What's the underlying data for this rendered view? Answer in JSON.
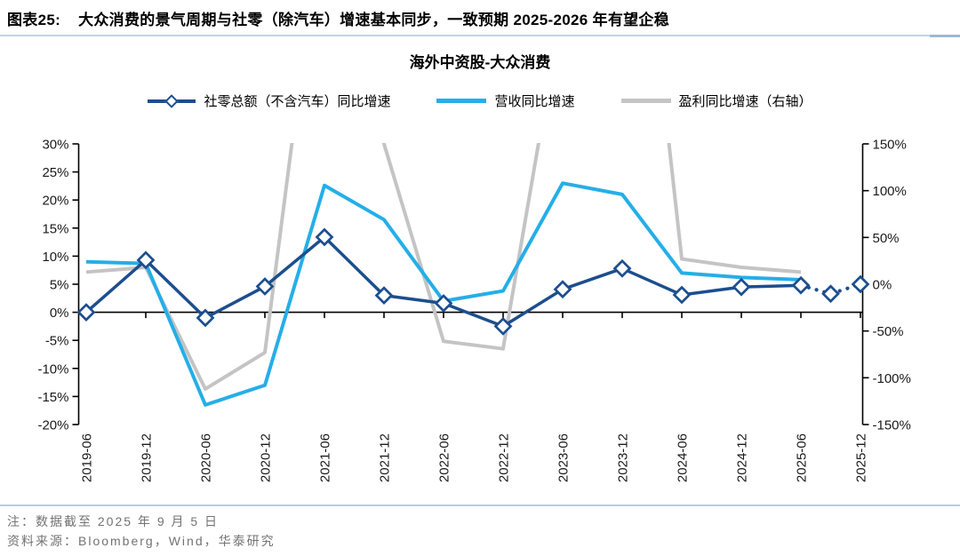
{
  "figure": {
    "label": "图表25:",
    "title": "大众消费的景气周期与社零（除汽车）增速基本同步，一致预期 2025-2026 年有望企稳"
  },
  "chart_title": "海外中资股-大众消费",
  "legend": [
    {
      "name": "社零总额（不含汽车）同比增速",
      "swatch": "navy-diamond-line"
    },
    {
      "name": "营收同比增速",
      "swatch": "cyan-line"
    },
    {
      "name": "盈利同比增速（右轴）",
      "swatch": "gray-line"
    }
  ],
  "notes": [
    "注：数据截至 2025 年 9 月 5 日",
    "资料来源：Bloomberg，Wind，华泰研究"
  ],
  "colors": {
    "navy": "#1c4e8e",
    "cyan": "#25aee8",
    "gray": "#c4c4c4",
    "axis": "#000000"
  },
  "chart_data": {
    "type": "line",
    "categories": [
      "2019-06",
      "2019-12",
      "2020-06",
      "2020-12",
      "2021-06",
      "2021-12",
      "2022-06",
      "2022-12",
      "2023-06",
      "2023-12",
      "2024-06",
      "2024-12",
      "2025-06",
      "2025-12"
    ],
    "left_axis": {
      "max": 30,
      "min": -20,
      "step": 5,
      "tick_labels": [
        "30%",
        "25%",
        "20%",
        "15%",
        "10%",
        "5%",
        "0%",
        "-5%",
        "-10%",
        "-15%",
        "-20%"
      ]
    },
    "right_axis": {
      "max": 150,
      "min": -150,
      "step": 50,
      "tick_labels": [
        "150%",
        "100%",
        "50%",
        "0%",
        "-50%",
        "-100%",
        "-150%"
      ]
    },
    "grid": false,
    "legend_position": "top",
    "series": [
      {
        "name": "社零总额（不含汽车）同比增速",
        "axis": "left",
        "color": "#1c4e8e",
        "marker": "open-diamond",
        "points": [
          {
            "x": 0,
            "period": "2019-06",
            "value": 0.0
          },
          {
            "x": 1,
            "period": "2019-12",
            "value": 9.3
          },
          {
            "x": 2,
            "period": "2020-06",
            "value": -1.0
          },
          {
            "x": 3,
            "period": "2020-12",
            "value": 4.6
          },
          {
            "x": 4,
            "period": "2021-06",
            "value": 13.4
          },
          {
            "x": 5,
            "period": "2021-12",
            "value": 3.0
          },
          {
            "x": 6,
            "period": "2022-06",
            "value": 1.6
          },
          {
            "x": 7,
            "period": "2022-12",
            "value": -2.5
          },
          {
            "x": 8,
            "period": "2023-06",
            "value": 4.1
          },
          {
            "x": 9,
            "period": "2023-12",
            "value": 7.8
          },
          {
            "x": 10,
            "period": "2024-06",
            "value": 3.1
          },
          {
            "x": 11,
            "period": "2024-12",
            "value": 4.5
          },
          {
            "x": 12,
            "period": "2025-06",
            "value": 4.8
          },
          {
            "x": 12.5,
            "period": "2025-09",
            "value": 3.3
          },
          {
            "x": 13,
            "period": "2025-12",
            "value": 5.0
          }
        ],
        "dashed_from_x": 12
      },
      {
        "name": "营收同比增速",
        "axis": "left",
        "color": "#25aee8",
        "marker": "none",
        "values": [
          9.0,
          8.7,
          -16.5,
          -13.0,
          22.6,
          16.5,
          2.0,
          3.8,
          23.0,
          21.0,
          7.0,
          6.2,
          5.8,
          null
        ]
      },
      {
        "name": "盈利同比增速（右轴）",
        "axis": "right",
        "color": "#c4c4c4",
        "marker": "none",
        "clipped_to_axis": true,
        "values": [
          13,
          18,
          -112,
          -73,
          420,
          150,
          -61,
          -69,
          300,
          600,
          27,
          18,
          13,
          null
        ]
      }
    ]
  }
}
